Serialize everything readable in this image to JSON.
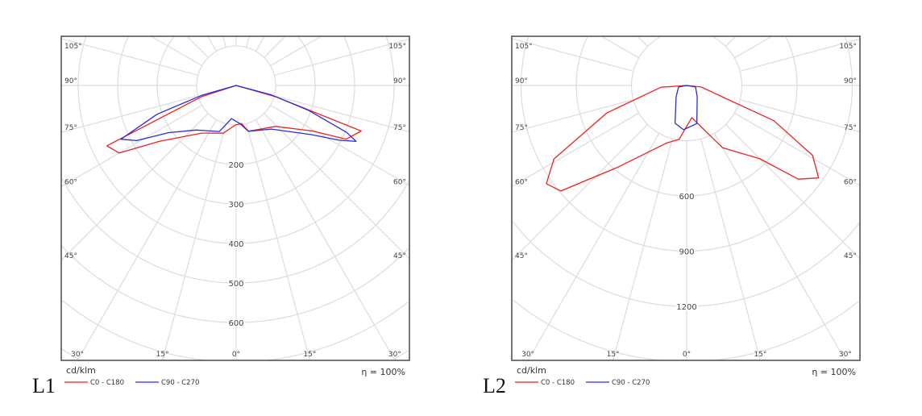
{
  "chart_data": [
    {
      "type": "polar",
      "label": "L1",
      "unit": "cd/klm",
      "efficiency": "η = 100%",
      "ring_step": 100,
      "ring_labels": [
        "200",
        "300",
        "400",
        "500",
        "600"
      ],
      "ring_values": [
        200,
        300,
        400,
        500,
        600
      ],
      "side_angle_labels": [
        {
          "gamma": 105,
          "text": "105°"
        },
        {
          "gamma": 90,
          "text": "90°"
        },
        {
          "gamma": 75,
          "text": "75°"
        },
        {
          "gamma": 60,
          "text": "60°"
        },
        {
          "gamma": 45,
          "text": "45°"
        }
      ],
      "bottom_angle_labels": [
        {
          "gamma": -30,
          "text": "30°"
        },
        {
          "gamma": -15,
          "text": "15°"
        },
        {
          "gamma": 0,
          "text": "0°"
        },
        {
          "gamma": 15,
          "text": "15°"
        },
        {
          "gamma": 30,
          "text": "30°"
        }
      ],
      "series": [
        {
          "name": "C0 - C180",
          "color": "#ee2222",
          "points": [
            [
              -90,
              0
            ],
            [
              -72,
              92
            ],
            [
              -65,
              361
            ],
            [
              -60,
              342
            ],
            [
              -54,
              241
            ],
            [
              -36,
              149
            ],
            [
              -15,
              125
            ],
            [
              -1,
              100
            ],
            [
              8,
              97
            ],
            [
              15,
              120
            ],
            [
              44,
              144
            ],
            [
              59,
              223
            ],
            [
              64,
              310
            ],
            [
              70,
              337
            ],
            [
              74,
              106
            ],
            [
              90,
              0
            ]
          ]
        },
        {
          "name": "C90 - C270",
          "color": "#2a2ae0",
          "points": [
            [
              -90,
              0
            ],
            [
              -74,
              91
            ],
            [
              -70,
              213
            ],
            [
              -65,
              322
            ],
            [
              -61,
              288
            ],
            [
              -55,
              208
            ],
            [
              -42,
              152
            ],
            [
              -20,
              124
            ],
            [
              -8,
              85
            ],
            [
              5,
              96
            ],
            [
              15,
              120
            ],
            [
              39,
              142
            ],
            [
              57,
              229
            ],
            [
              62,
              295
            ],
            [
              65,
              335
            ],
            [
              67,
              304
            ],
            [
              71,
              194
            ],
            [
              75,
              93
            ],
            [
              90,
              0
            ]
          ]
        }
      ]
    },
    {
      "type": "polar",
      "label": "L2",
      "unit": "cd/klm",
      "efficiency": "η = 100%",
      "ring_step": 300,
      "ring_labels": [
        "600",
        "900",
        "1200"
      ],
      "ring_values": [
        600,
        900,
        1200
      ],
      "side_angle_labels": [
        {
          "gamma": 105,
          "text": "105°"
        },
        {
          "gamma": 90,
          "text": "90°"
        },
        {
          "gamma": 75,
          "text": "75°"
        },
        {
          "gamma": 60,
          "text": "60°"
        },
        {
          "gamma": 45,
          "text": "45°"
        }
      ],
      "bottom_angle_labels": [
        {
          "gamma": -30,
          "text": "30°"
        },
        {
          "gamma": -15,
          "text": "15°"
        },
        {
          "gamma": 0,
          "text": "0°"
        },
        {
          "gamma": 15,
          "text": "15°"
        },
        {
          "gamma": 30,
          "text": "30°"
        }
      ],
      "series": [
        {
          "name": "C0 - C180",
          "color": "#ee2222",
          "points": [
            [
              -90,
              0
            ],
            [
              -86,
              140
            ],
            [
              -71,
              459
            ],
            [
              -61,
              825
            ],
            [
              -55,
              931
            ],
            [
              -50,
              892
            ],
            [
              -40,
              578
            ],
            [
              -19,
              330
            ],
            [
              -8,
              296
            ],
            [
              9,
              177
            ],
            [
              30,
              391
            ],
            [
              45,
              564
            ],
            [
              50,
              792
            ],
            [
              55,
              876
            ],
            [
              61,
              782
            ],
            [
              68,
              511
            ],
            [
              84,
              79
            ],
            [
              90,
              0
            ]
          ]
        },
        {
          "name": "C90 - C270",
          "color": "#2a2ae0",
          "points": [
            [
              -90,
              0
            ],
            [
              -79,
              45
            ],
            [
              -43,
              84
            ],
            [
              -17,
              215
            ],
            [
              -4,
              241
            ],
            [
              15,
              214
            ],
            [
              43,
              84
            ],
            [
              80,
              49
            ],
            [
              90,
              0
            ]
          ]
        }
      ]
    }
  ]
}
